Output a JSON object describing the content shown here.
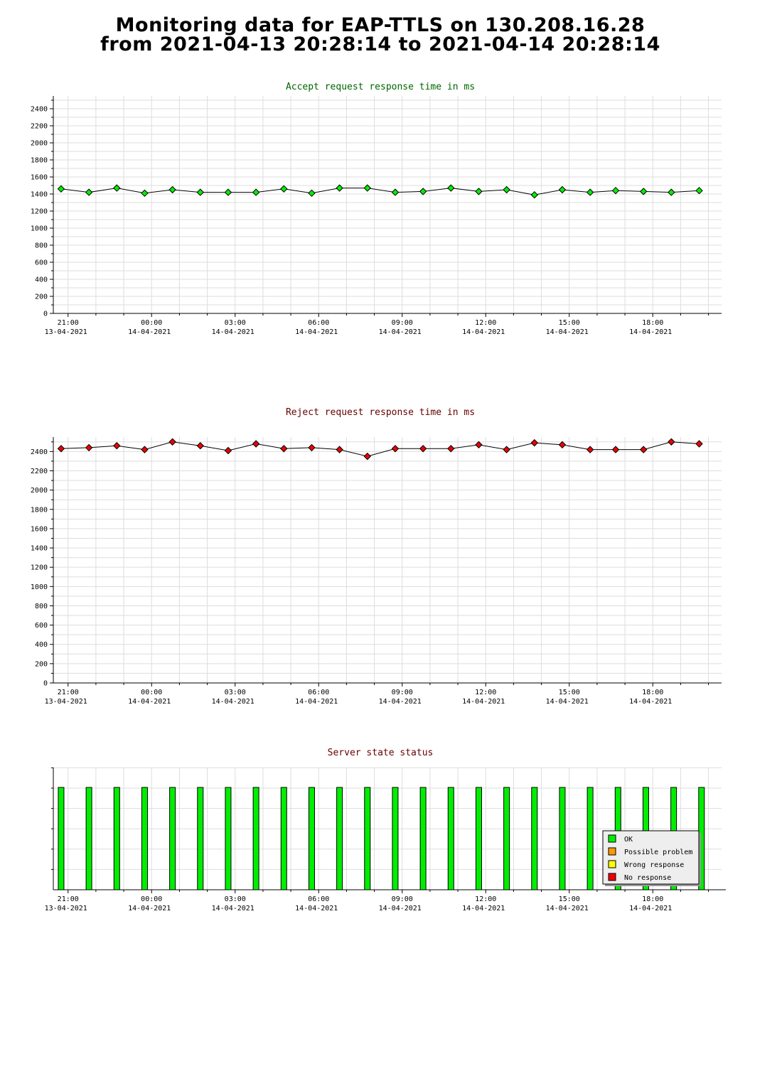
{
  "title": {
    "line1": "Monitoring data for EAP-TTLS on 130.208.16.28",
    "line2": "from 2021-04-13 20:28:14 to 2021-04-14 20:28:14"
  },
  "colors": {
    "accept_title": "#006600",
    "reject_title": "#660000",
    "status_title": "#660000",
    "accept_marker": "#00ee00",
    "reject_marker": "#ee0000",
    "ok": "#00ee00",
    "possible_problem": "#ff9900",
    "wrong_response": "#ffff00",
    "no_response": "#ee0000",
    "grid": "#dddddd"
  },
  "x_ticks": [
    {
      "time": "21:00",
      "date": "13-04-2021"
    },
    {
      "time": "00:00",
      "date": "14-04-2021"
    },
    {
      "time": "03:00",
      "date": "14-04-2021"
    },
    {
      "time": "06:00",
      "date": "14-04-2021"
    },
    {
      "time": "09:00",
      "date": "14-04-2021"
    },
    {
      "time": "12:00",
      "date": "14-04-2021"
    },
    {
      "time": "15:00",
      "date": "14-04-2021"
    },
    {
      "time": "18:00",
      "date": "14-04-2021"
    }
  ],
  "chart_data": [
    {
      "type": "line",
      "title": "Accept request response time in ms",
      "xlabel": "",
      "ylabel": "",
      "xlim": [
        "2021-04-13 20:28:14",
        "2021-04-14 20:28:14"
      ],
      "ylim": [
        0,
        2550
      ],
      "yticks": [
        0,
        200,
        400,
        600,
        800,
        1000,
        1200,
        1400,
        1600,
        1800,
        2000,
        2200,
        2400
      ],
      "grid": true,
      "series": [
        {
          "x": [
            "2021-04-13 20:45",
            "2021-04-13 21:45",
            "2021-04-13 22:45",
            "2021-04-13 23:45",
            "2021-04-14 00:45",
            "2021-04-14 01:45",
            "2021-04-14 02:45",
            "2021-04-14 03:45",
            "2021-04-14 04:45",
            "2021-04-14 05:45",
            "2021-04-14 06:45",
            "2021-04-14 07:45",
            "2021-04-14 08:45",
            "2021-04-14 09:45",
            "2021-04-14 10:45",
            "2021-04-14 11:45",
            "2021-04-14 12:45",
            "2021-04-14 13:45",
            "2021-04-14 14:45",
            "2021-04-14 15:45",
            "2021-04-14 16:40",
            "2021-04-14 17:40",
            "2021-04-14 18:40",
            "2021-04-14 19:40"
          ],
          "values": [
            1460,
            1420,
            1470,
            1410,
            1450,
            1420,
            1420,
            1420,
            1460,
            1410,
            1470,
            1470,
            1420,
            1430,
            1470,
            1430,
            1450,
            1390,
            1450,
            1420,
            1440,
            1430,
            1420,
            1440
          ]
        }
      ]
    },
    {
      "type": "line",
      "title": "Reject request response time in ms",
      "xlabel": "",
      "ylabel": "",
      "xlim": [
        "2021-04-13 20:28:14",
        "2021-04-14 20:28:14"
      ],
      "ylim": [
        0,
        2550
      ],
      "yticks": [
        0,
        200,
        400,
        600,
        800,
        1000,
        1200,
        1400,
        1600,
        1800,
        2000,
        2200,
        2400
      ],
      "grid": true,
      "series": [
        {
          "x": [
            "2021-04-13 20:45",
            "2021-04-13 21:45",
            "2021-04-13 22:45",
            "2021-04-13 23:45",
            "2021-04-14 00:45",
            "2021-04-14 01:45",
            "2021-04-14 02:45",
            "2021-04-14 03:45",
            "2021-04-14 04:45",
            "2021-04-14 05:45",
            "2021-04-14 06:45",
            "2021-04-14 07:45",
            "2021-04-14 08:45",
            "2021-04-14 09:45",
            "2021-04-14 10:45",
            "2021-04-14 11:45",
            "2021-04-14 12:45",
            "2021-04-14 13:45",
            "2021-04-14 14:45",
            "2021-04-14 15:45",
            "2021-04-14 16:40",
            "2021-04-14 17:40",
            "2021-04-14 18:40",
            "2021-04-14 19:40"
          ],
          "values": [
            2430,
            2440,
            2460,
            2420,
            2500,
            2460,
            2410,
            2480,
            2430,
            2440,
            2420,
            2350,
            2430,
            2430,
            2430,
            2470,
            2420,
            2490,
            2470,
            2420,
            2420,
            2420,
            2500,
            2480
          ]
        }
      ]
    },
    {
      "type": "bar",
      "title": "Server state status",
      "xlabel": "",
      "ylabel": "",
      "xlim": [
        "2021-04-13 20:28:14",
        "2021-04-14 20:28:14"
      ],
      "grid": true,
      "legend": "bottom-right",
      "legend_entries": [
        "OK",
        "Possible problem",
        "Wrong response",
        "No response"
      ],
      "series": [
        {
          "name": "OK",
          "x": [
            "2021-04-13 20:45",
            "2021-04-13 21:45",
            "2021-04-13 22:45",
            "2021-04-13 23:45",
            "2021-04-14 00:45",
            "2021-04-14 01:45",
            "2021-04-14 02:45",
            "2021-04-14 03:45",
            "2021-04-14 04:45",
            "2021-04-14 05:45",
            "2021-04-14 06:45",
            "2021-04-14 07:45",
            "2021-04-14 08:45",
            "2021-04-14 09:45",
            "2021-04-14 10:45",
            "2021-04-14 11:45",
            "2021-04-14 12:45",
            "2021-04-14 13:45",
            "2021-04-14 14:45",
            "2021-04-14 15:45",
            "2021-04-14 16:45",
            "2021-04-14 17:45",
            "2021-04-14 18:45",
            "2021-04-14 19:45"
          ],
          "values": [
            1,
            1,
            1,
            1,
            1,
            1,
            1,
            1,
            1,
            1,
            1,
            1,
            1,
            1,
            1,
            1,
            1,
            1,
            1,
            1,
            1,
            1,
            1,
            1
          ]
        }
      ]
    }
  ]
}
